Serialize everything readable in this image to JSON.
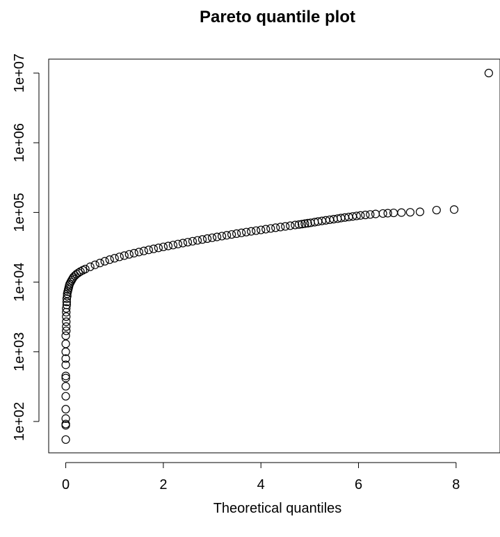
{
  "chart_data": {
    "type": "scatter",
    "title": "Pareto quantile plot",
    "xlabel": "Theoretical quantiles",
    "ylabel": "",
    "xlim": [
      -0.35,
      8.9
    ],
    "ylim_log10": [
      1.55,
      7.2
    ],
    "y_scale": "log",
    "grid": false,
    "legend": "none",
    "marker": "open-circle",
    "color": "#000000",
    "x_ticks": [
      0,
      2,
      4,
      6,
      8
    ],
    "x_tick_labels": [
      "0",
      "2",
      "4",
      "6",
      "8"
    ],
    "y_ticks": [
      100,
      1000,
      10000,
      100000,
      1000000,
      10000000
    ],
    "y_tick_labels": [
      "1e+02",
      "1e+03",
      "1e+04",
      "1e+05",
      "1e+06",
      "1e+07"
    ],
    "series": [
      {
        "x": [
          0.0,
          0.0,
          0.0,
          0.0,
          0.0,
          0.0,
          0.0,
          0.0,
          0.0,
          0.0,
          0.0,
          0.0,
          0.0,
          0.0,
          0.01,
          0.01,
          0.01,
          0.01,
          0.01,
          0.01,
          0.02,
          0.02,
          0.02,
          0.03,
          0.03,
          0.04,
          0.05,
          0.06,
          0.07,
          0.08,
          0.1,
          0.12,
          0.14,
          0.16,
          0.19,
          0.22,
          0.26,
          0.3,
          0.35,
          0.4,
          0.5,
          0.6,
          0.7,
          0.8,
          0.9,
          1.0,
          1.1,
          1.2,
          1.3,
          1.4,
          1.5,
          1.6,
          1.7,
          1.8,
          1.9,
          2.0,
          2.1,
          2.2,
          2.3,
          2.4,
          2.5,
          2.6,
          2.7,
          2.8,
          2.9,
          3.0,
          3.1,
          3.2,
          3.3,
          3.4,
          3.5,
          3.6,
          3.7,
          3.8,
          3.9,
          4.0,
          4.1,
          4.2,
          4.3,
          4.4,
          4.5,
          4.6,
          4.7,
          4.78,
          4.84,
          4.9,
          4.96,
          5.02,
          5.1,
          5.17,
          5.25,
          5.33,
          5.41,
          5.49,
          5.57,
          5.64,
          5.72,
          5.8,
          5.88,
          5.96,
          6.04,
          6.14,
          6.24,
          6.35,
          6.5,
          6.6,
          6.72,
          6.88,
          7.06,
          7.26,
          7.6,
          7.96,
          8.67
        ],
        "y": [
          55,
          88,
          92,
          110,
          150,
          230,
          320,
          420,
          450,
          650,
          800,
          1000,
          1300,
          1700,
          2000,
          2300,
          2700,
          3200,
          3700,
          4200,
          4700,
          5200,
          5800,
          6300,
          6800,
          7300,
          7800,
          8300,
          8900,
          9400,
          10000,
          10600,
          11200,
          11800,
          12400,
          13000,
          13600,
          14200,
          14800,
          15400,
          16600,
          17700,
          18800,
          19900,
          21000,
          22000,
          23000,
          24000,
          25000,
          26000,
          27000,
          28000,
          29000,
          30000,
          31000,
          32000,
          33000,
          34000,
          35200,
          36300,
          37400,
          38600,
          39700,
          40900,
          42100,
          43300,
          44500,
          45700,
          47000,
          48300,
          49600,
          50900,
          52200,
          53500,
          54800,
          56100,
          57500,
          58900,
          60300,
          61700,
          63000,
          64500,
          66000,
          67000,
          68000,
          69000,
          70000,
          71000,
          72500,
          74000,
          75500,
          77000,
          78500,
          80000,
          81500,
          83000,
          84500,
          86000,
          87500,
          89000,
          90500,
          92000,
          93500,
          95000,
          96500,
          97500,
          98500,
          99500,
          100500,
          102000,
          108000,
          110000,
          10000000
        ]
      }
    ]
  }
}
